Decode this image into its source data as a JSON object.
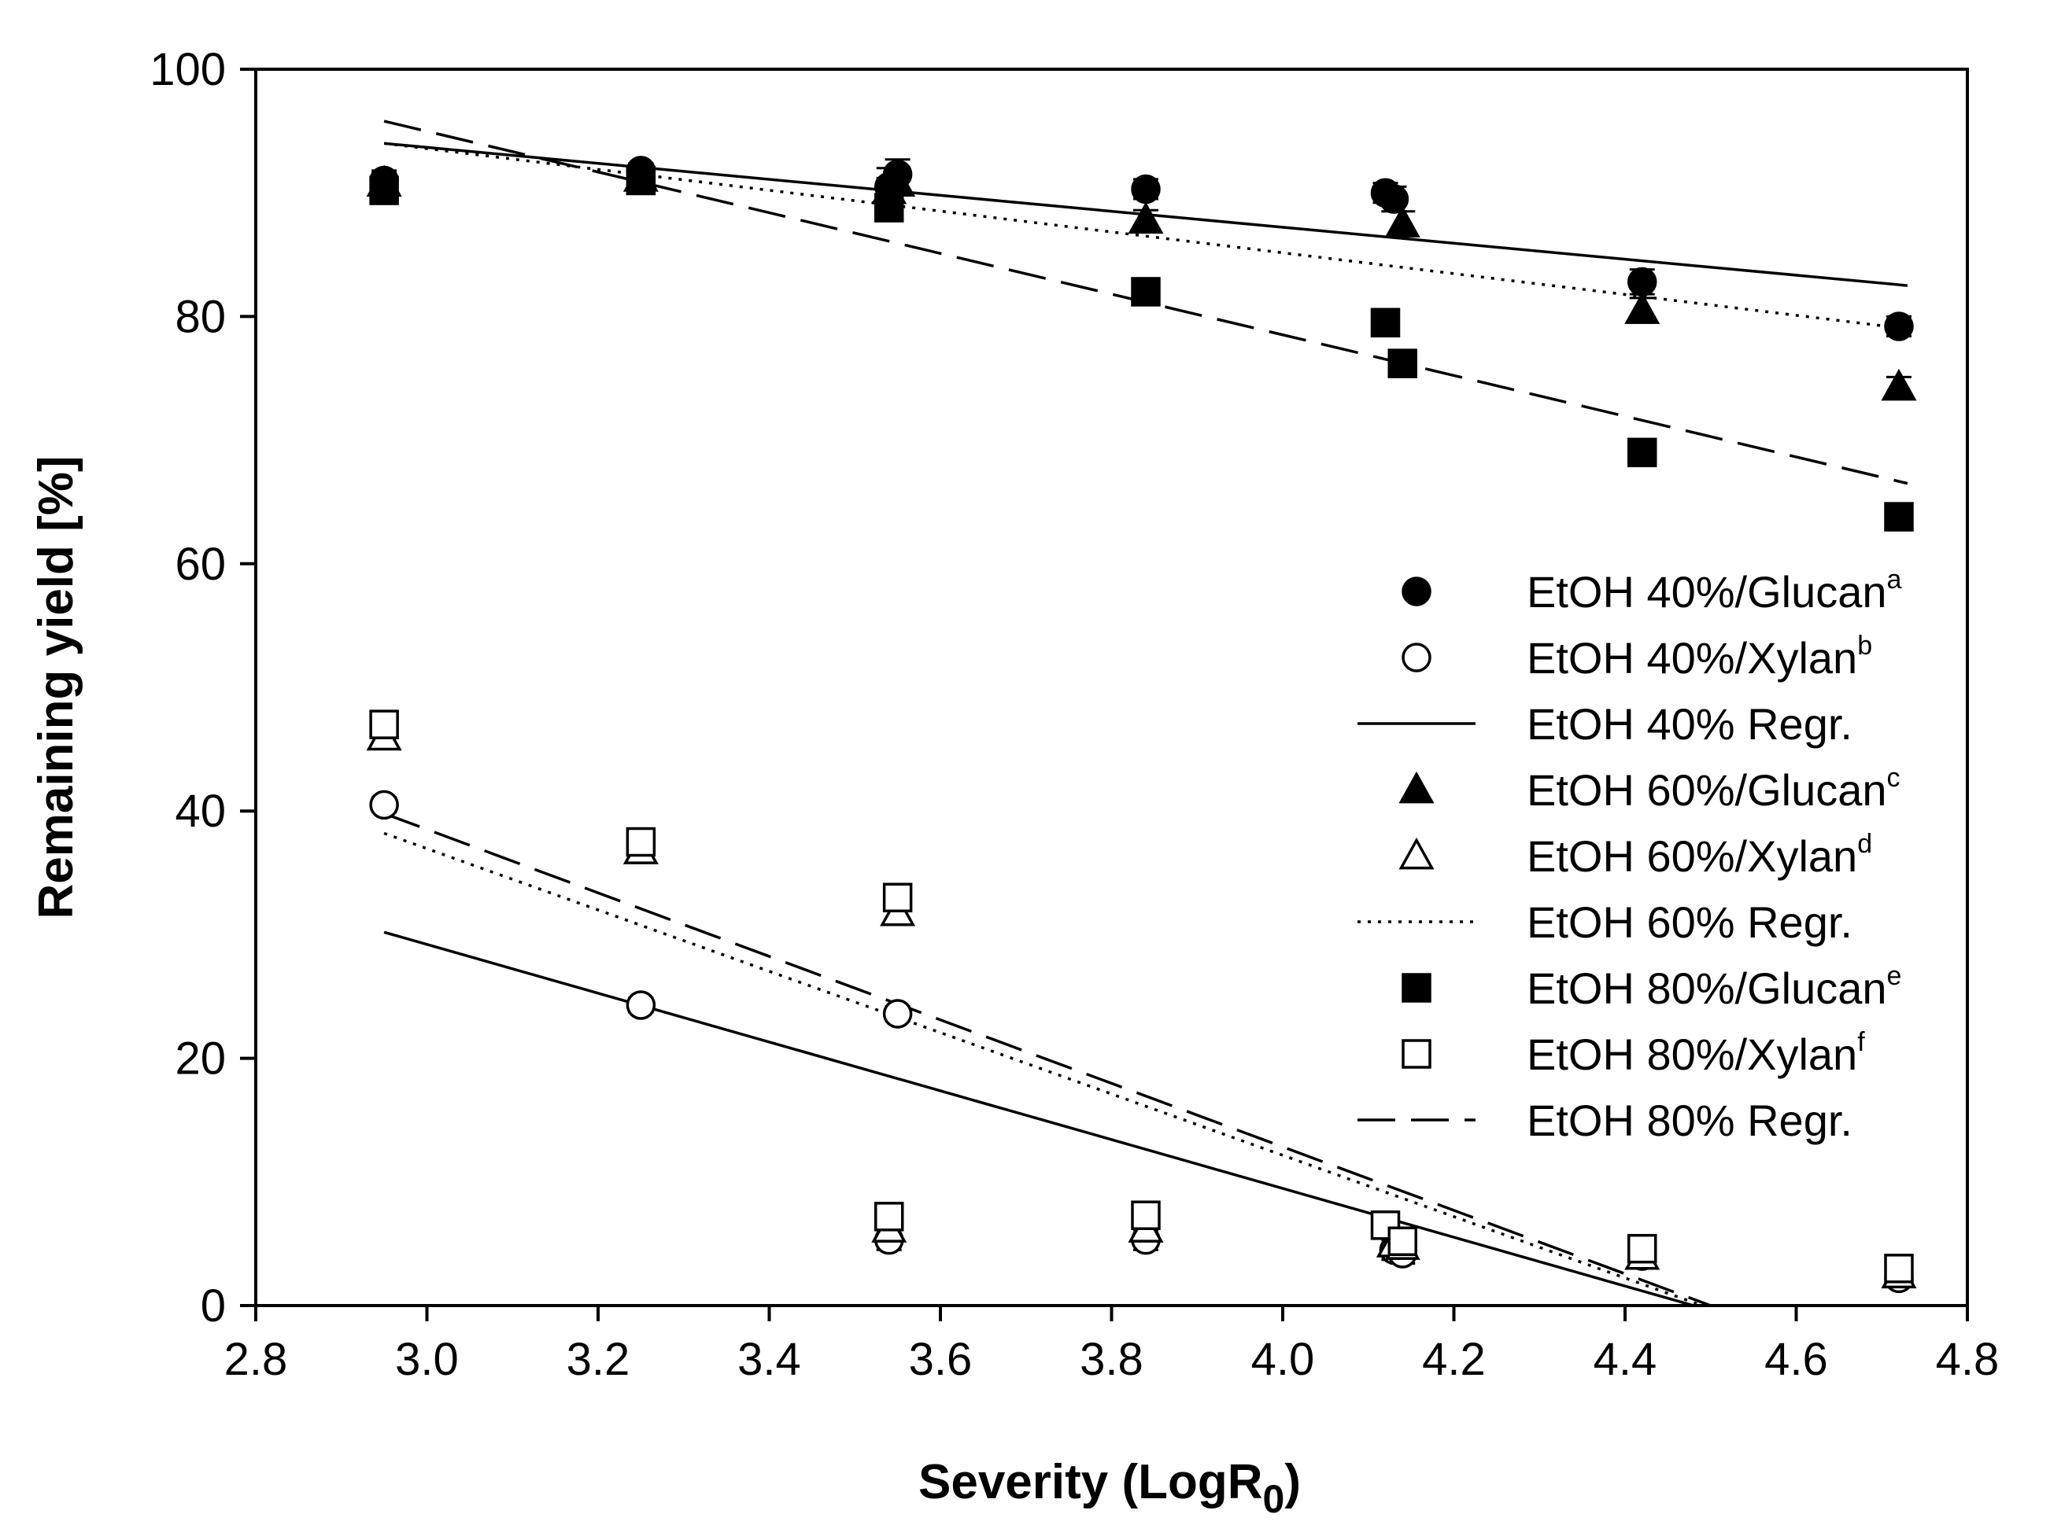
{
  "chart_data": {
    "type": "scatter",
    "title": "",
    "xlabel": "Severity (LogR",
    "xlabel_sub": "0",
    "xlabel_close": ")",
    "ylabel": "Remaining yield [%]",
    "xlim": [
      2.8,
      4.8
    ],
    "ylim": [
      0,
      100
    ],
    "xticks": [
      2.8,
      3.0,
      3.2,
      3.4,
      3.6,
      3.8,
      4.0,
      4.2,
      4.4,
      4.6,
      4.8
    ],
    "xtick_labels": [
      "2.8",
      "3.0",
      "3.2",
      "3.4",
      "3.6",
      "3.8",
      "4.0",
      "4.2",
      "4.4",
      "4.6",
      "4.8"
    ],
    "yticks": [
      0,
      20,
      40,
      60,
      80,
      100
    ],
    "ytick_labels": [
      "0",
      "20",
      "40",
      "60",
      "80",
      "100"
    ],
    "grid": false,
    "legend_position": "right",
    "series": [
      {
        "name": "EtOH 40%/Glucan",
        "sup": "a",
        "marker": "circle-filled",
        "x": [
          2.95,
          3.25,
          3.54,
          3.55,
          3.84,
          4.12,
          4.13,
          4.42,
          4.72
        ],
        "y": [
          91.0,
          91.8,
          90.5,
          91.5,
          90.3,
          90.0,
          89.5,
          82.8,
          79.2
        ],
        "err": [
          0.8,
          0.6,
          1.5,
          1.2,
          0.8,
          0.8,
          1.0,
          1.0,
          0.8
        ]
      },
      {
        "name": "EtOH 40%/Xylan",
        "sup": "b",
        "marker": "circle-open",
        "x": [
          2.95,
          3.25,
          3.55,
          3.54,
          3.84,
          4.13,
          4.14,
          4.42,
          4.72
        ],
        "y": [
          40.5,
          24.3,
          23.6,
          5.3,
          5.3,
          4.5,
          4.2,
          4.0,
          2.2
        ],
        "err": [
          0.6,
          0.6,
          0.6,
          0.8,
          0.8,
          0.8,
          0.8,
          0.8,
          0.6
        ]
      },
      {
        "name": "EtOH 40% Regr.",
        "line": "solid",
        "x": [
          2.95,
          4.73
        ],
        "y": [
          94.0,
          82.5
        ],
        "segments": [
          {
            "x": [
              2.95,
              4.73
            ],
            "y": [
              94.0,
              82.5
            ]
          },
          {
            "x": [
              2.95,
              4.48
            ],
            "y": [
              30.2,
              0.0
            ]
          }
        ]
      },
      {
        "name": "EtOH 60%/Glucan",
        "sup": "c",
        "marker": "triangle-filled",
        "x": [
          2.95,
          3.25,
          3.54,
          3.55,
          3.84,
          4.14,
          4.42,
          4.72
        ],
        "y": [
          90.8,
          91.2,
          90.2,
          90.8,
          87.8,
          87.5,
          80.5,
          74.3
        ],
        "err": [
          0.8,
          0.6,
          1.0,
          1.0,
          0.8,
          1.0,
          1.0,
          0.8
        ]
      },
      {
        "name": "EtOH 60%/Xylan",
        "sup": "d",
        "marker": "triangle-open",
        "x": [
          2.95,
          3.25,
          3.55,
          3.54,
          3.84,
          4.13,
          4.14,
          4.42,
          4.72
        ],
        "y": [
          46.0,
          36.8,
          31.8,
          6.2,
          6.2,
          5.0,
          4.8,
          4.0,
          2.5
        ],
        "err": [
          0.8,
          0.8,
          1.0,
          1.0,
          1.0,
          1.0,
          1.0,
          1.0,
          0.6
        ]
      },
      {
        "name": "EtOH 60% Regr.",
        "line": "dotted",
        "x": [
          2.95,
          4.73
        ],
        "y": [
          94.0,
          79.0
        ],
        "segments": [
          {
            "x": [
              2.95,
              4.73
            ],
            "y": [
              94.0,
              79.0
            ]
          },
          {
            "x": [
              2.95,
              4.49
            ],
            "y": [
              38.2,
              0.0
            ]
          }
        ]
      },
      {
        "name": "EtOH 80%/Glucan",
        "sup": "e",
        "marker": "square-filled",
        "x": [
          2.95,
          3.25,
          3.54,
          3.84,
          4.12,
          4.14,
          4.42,
          4.72
        ],
        "y": [
          90.2,
          91.0,
          88.8,
          82.0,
          79.5,
          76.2,
          69.0,
          63.8
        ],
        "err": [
          0.8,
          0.6,
          0.8,
          0.8,
          1.0,
          1.0,
          0.8,
          0.8
        ]
      },
      {
        "name": "EtOH 80%/Xylan",
        "sup": "f",
        "marker": "square-open",
        "x": [
          2.95,
          3.25,
          3.55,
          3.54,
          3.84,
          4.12,
          4.14,
          4.42,
          4.72
        ],
        "y": [
          47.0,
          37.5,
          33.0,
          7.2,
          7.3,
          6.5,
          5.2,
          4.6,
          3.0
        ],
        "err": [
          0.8,
          0.8,
          1.0,
          1.0,
          1.0,
          1.0,
          1.0,
          1.0,
          0.6
        ]
      },
      {
        "name": "EtOH 80% Regr.",
        "line": "dashed",
        "x": [
          2.95,
          4.73
        ],
        "y": [
          95.8,
          66.5
        ],
        "segments": [
          {
            "x": [
              2.95,
              4.73
            ],
            "y": [
              95.8,
              66.5
            ]
          },
          {
            "x": [
              2.95,
              4.5
            ],
            "y": [
              39.8,
              0.0
            ]
          }
        ]
      }
    ]
  }
}
